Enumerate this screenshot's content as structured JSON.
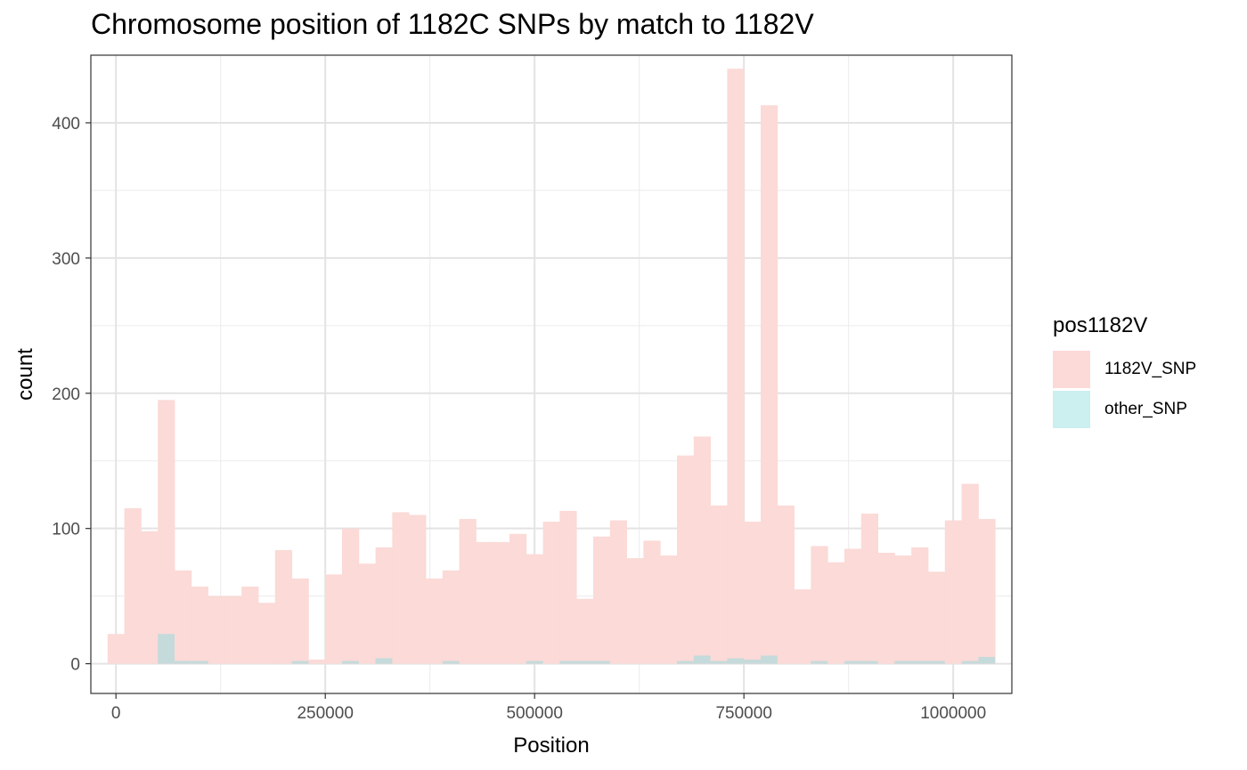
{
  "chart_data": {
    "type": "bar",
    "title": "Chromosome position of 1182C SNPs by match to 1182V",
    "xlabel": "Position",
    "ylabel": "count",
    "xlim": [
      -30000,
      1070000
    ],
    "ylim": [
      -22,
      450
    ],
    "x_ticks": [
      0,
      250000,
      500000,
      750000,
      1000000
    ],
    "x_tick_labels": [
      "0",
      "250000",
      "500000",
      "750000",
      "1000000"
    ],
    "y_ticks": [
      0,
      100,
      200,
      300,
      400
    ],
    "y_tick_labels": [
      "0",
      "100",
      "200",
      "300",
      "400"
    ],
    "grid": true,
    "bin_start": -10000,
    "bin_width": 20000,
    "legend": {
      "title": "pos1182V",
      "position": "right",
      "items": [
        {
          "label": "1182V_SNP",
          "color": "#fbdad7"
        },
        {
          "label": "other_SNP",
          "color": "#cceff0"
        }
      ]
    },
    "series": [
      {
        "name": "1182V_SNP",
        "color": "#fbdad7",
        "values": [
          22,
          115,
          98,
          195,
          69,
          57,
          50,
          50,
          57,
          45,
          84,
          63,
          3,
          66,
          100,
          74,
          86,
          112,
          110,
          63,
          69,
          107,
          90,
          90,
          96,
          81,
          105,
          113,
          48,
          94,
          106,
          78,
          91,
          80,
          154,
          168,
          117,
          440,
          105,
          413,
          117,
          55,
          87,
          75,
          85,
          111,
          82,
          80,
          86,
          68,
          106,
          133,
          107
        ]
      },
      {
        "name": "other_SNP",
        "color": "#cceff0",
        "values": [
          0,
          0,
          0,
          22,
          2,
          2,
          0,
          0,
          0,
          0,
          0,
          2,
          0,
          0,
          2,
          0,
          4,
          0,
          0,
          0,
          2,
          0,
          0,
          0,
          0,
          2,
          0,
          2,
          2,
          2,
          0,
          0,
          0,
          0,
          2,
          6,
          2,
          4,
          3,
          6,
          0,
          0,
          2,
          0,
          2,
          2,
          0,
          2,
          2,
          2,
          0,
          2,
          5
        ]
      }
    ]
  }
}
